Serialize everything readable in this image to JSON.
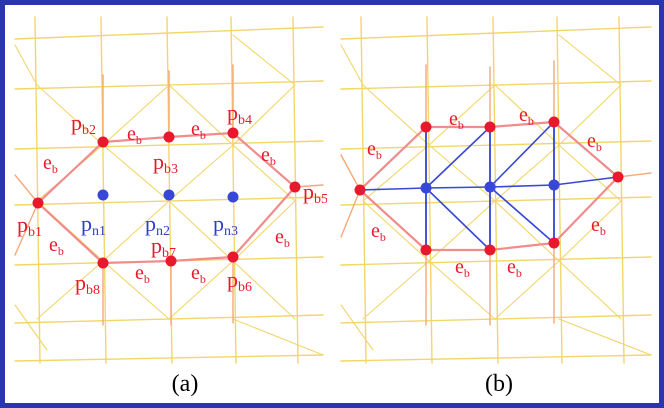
{
  "colors": {
    "frame": "#2a35b0",
    "grid": "#f2d66a",
    "grid_mid": "#f6a97a",
    "boundary_edge": "#f08c8c",
    "boundary_point": "#e8192c",
    "inner_point": "#3747d6",
    "inner_edge": "#3747d6",
    "label_red": "#e8192c",
    "label_blue": "#2f3ec8"
  },
  "panel_a": {
    "caption": "(a)",
    "boundary_labels": [
      {
        "base": "p",
        "sub": "b1"
      },
      {
        "base": "p",
        "sub": "b2"
      },
      {
        "base": "p",
        "sub": "b3"
      },
      {
        "base": "p",
        "sub": "b4"
      },
      {
        "base": "p",
        "sub": "b5"
      },
      {
        "base": "p",
        "sub": "b6"
      },
      {
        "base": "p",
        "sub": "b7"
      },
      {
        "base": "p",
        "sub": "b8"
      }
    ],
    "inner_labels": [
      {
        "base": "p",
        "sub": "n1"
      },
      {
        "base": "p",
        "sub": "n2"
      },
      {
        "base": "p",
        "sub": "n3"
      }
    ],
    "edge_label": {
      "base": "e",
      "sub": "b"
    }
  },
  "panel_b": {
    "caption": "(b)",
    "edge_label": {
      "base": "e",
      "sub": "b"
    }
  }
}
